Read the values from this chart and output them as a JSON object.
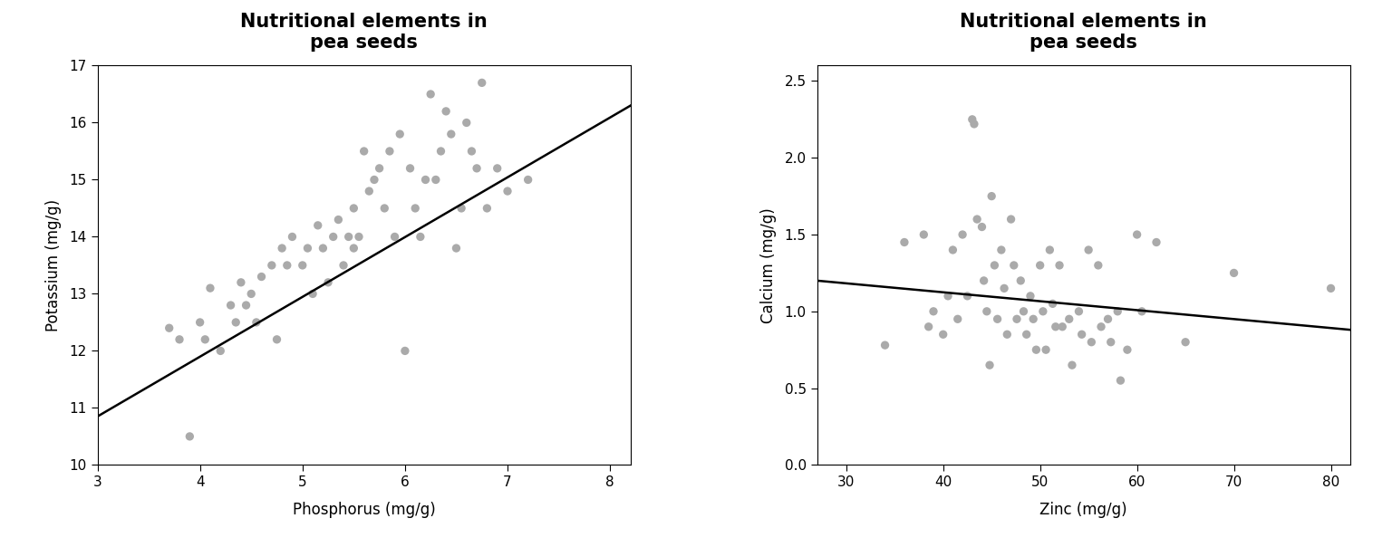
{
  "title": "Nutritional elements in\npea seeds",
  "plot1": {
    "xlabel": "Phosphorus (mg/g)",
    "ylabel": "Potassium (mg/g)",
    "xlim": [
      3,
      8.2
    ],
    "ylim": [
      10,
      17
    ],
    "xticks": [
      3,
      4,
      5,
      6,
      7,
      8
    ],
    "yticks": [
      10,
      11,
      12,
      13,
      14,
      15,
      16,
      17
    ],
    "x": [
      3.7,
      3.8,
      3.9,
      4.0,
      4.05,
      4.1,
      4.2,
      4.3,
      4.35,
      4.4,
      4.45,
      4.5,
      4.55,
      4.6,
      4.7,
      4.75,
      4.8,
      4.85,
      4.9,
      5.0,
      5.05,
      5.1,
      5.15,
      5.2,
      5.25,
      5.3,
      5.35,
      5.4,
      5.45,
      5.5,
      5.5,
      5.55,
      5.6,
      5.65,
      5.7,
      5.75,
      5.8,
      5.85,
      5.9,
      5.95,
      6.0,
      6.05,
      6.1,
      6.15,
      6.2,
      6.25,
      6.3,
      6.35,
      6.4,
      6.45,
      6.5,
      6.55,
      6.6,
      6.65,
      6.7,
      6.75,
      6.8,
      6.9,
      7.0,
      7.2
    ],
    "y": [
      12.4,
      12.2,
      10.5,
      12.5,
      12.2,
      13.1,
      12.0,
      12.8,
      12.5,
      13.2,
      12.8,
      13.0,
      12.5,
      13.3,
      13.5,
      12.2,
      13.8,
      13.5,
      14.0,
      13.5,
      13.8,
      13.0,
      14.2,
      13.8,
      13.2,
      14.0,
      14.3,
      13.5,
      14.0,
      13.8,
      14.5,
      14.0,
      15.5,
      14.8,
      15.0,
      15.2,
      14.5,
      15.5,
      14.0,
      15.8,
      12.0,
      15.2,
      14.5,
      14.0,
      15.0,
      16.5,
      15.0,
      15.5,
      16.2,
      15.8,
      13.8,
      14.5,
      16.0,
      15.5,
      15.2,
      16.7,
      14.5,
      15.2,
      14.8,
      15.0
    ],
    "line_x": [
      3.0,
      8.2
    ],
    "line_y": [
      10.85,
      16.3
    ]
  },
  "plot2": {
    "xlabel": "Zinc (mg/g)",
    "ylabel": "Calcium (mg/g)",
    "xlim": [
      27,
      82
    ],
    "ylim": [
      0.0,
      2.6
    ],
    "xticks": [
      30,
      40,
      50,
      60,
      70,
      80
    ],
    "yticks": [
      0.0,
      0.5,
      1.0,
      1.5,
      2.0,
      2.5
    ],
    "x": [
      34,
      36,
      38,
      38.5,
      39,
      40,
      40.5,
      41,
      41.5,
      42,
      42.5,
      43,
      43.2,
      43.5,
      44,
      44.2,
      44.5,
      44.8,
      45,
      45.3,
      45.6,
      46,
      46.3,
      46.6,
      47,
      47.3,
      47.6,
      48,
      48.3,
      48.6,
      49,
      49.3,
      49.6,
      50,
      50.3,
      50.6,
      51,
      51.3,
      51.6,
      52,
      52.3,
      53,
      53.3,
      54,
      54.3,
      55,
      55.3,
      56,
      56.3,
      57,
      57.3,
      58,
      58.3,
      59,
      60,
      60.5,
      62,
      65,
      70,
      80
    ],
    "y": [
      0.78,
      1.45,
      1.5,
      0.9,
      1.0,
      0.85,
      1.1,
      1.4,
      0.95,
      1.5,
      1.1,
      2.25,
      2.22,
      1.6,
      1.55,
      1.2,
      1.0,
      0.65,
      1.75,
      1.3,
      0.95,
      1.4,
      1.15,
      0.85,
      1.6,
      1.3,
      0.95,
      1.2,
      1.0,
      0.85,
      1.1,
      0.95,
      0.75,
      1.3,
      1.0,
      0.75,
      1.4,
      1.05,
      0.9,
      1.3,
      0.9,
      0.95,
      0.65,
      1.0,
      0.85,
      1.4,
      0.8,
      1.3,
      0.9,
      0.95,
      0.8,
      1.0,
      0.55,
      0.75,
      1.5,
      1.0,
      1.45,
      0.8,
      1.25,
      1.15
    ],
    "line_x": [
      27,
      82
    ],
    "line_y": [
      1.2,
      0.88
    ]
  },
  "dot_color": "#aaaaaa",
  "dot_size": 45,
  "line_color": "#000000",
  "line_width": 1.8,
  "title_fontsize": 15,
  "label_fontsize": 12,
  "tick_fontsize": 11,
  "bg_color": "#ffffff",
  "plot_bg_color": "#ffffff"
}
